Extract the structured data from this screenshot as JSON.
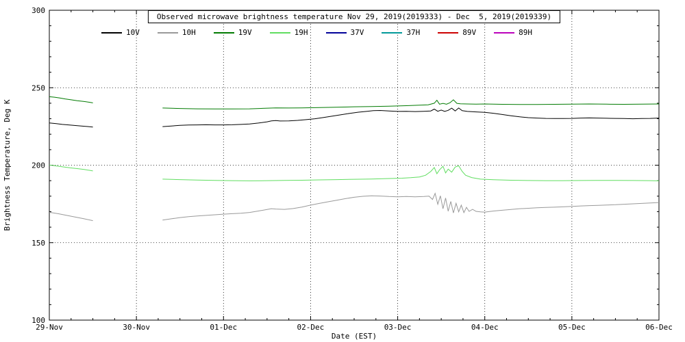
{
  "chart_data": {
    "type": "line",
    "title": "Observed microwave brightness temperature Nov 29, 2019(2019333) - Dec  5, 2019(2019339)",
    "xlabel": "Date (EST)",
    "ylabel": "Brightness Temperature, Deg K",
    "xlim": [
      0,
      7
    ],
    "ylim": [
      100,
      300
    ],
    "grid": "dotted",
    "legend_position": "top",
    "xticks": [
      {
        "x": 0,
        "label": "29-Nov"
      },
      {
        "x": 1,
        "label": "30-Nov"
      },
      {
        "x": 2,
        "label": "01-Dec"
      },
      {
        "x": 3,
        "label": "02-Dec"
      },
      {
        "x": 4,
        "label": "03-Dec"
      },
      {
        "x": 5,
        "label": "04-Dec"
      },
      {
        "x": 6,
        "label": "05-Dec"
      },
      {
        "x": 7,
        "label": "06-Dec"
      }
    ],
    "yticks": [
      100,
      150,
      200,
      250,
      300
    ],
    "series": [
      {
        "name": "10V",
        "color": "#000000",
        "segments": [
          [
            [
              0,
              227.3
            ],
            [
              0.08,
              226.8
            ],
            [
              0.15,
              226.3
            ],
            [
              0.22,
              226.0
            ],
            [
              0.3,
              225.6
            ],
            [
              0.38,
              225.2
            ],
            [
              0.45,
              224.9
            ],
            [
              0.5,
              224.6
            ]
          ],
          [
            [
              1.3,
              224.9
            ],
            [
              1.4,
              225.3
            ],
            [
              1.5,
              225.7
            ],
            [
              1.6,
              225.9
            ],
            [
              1.7,
              226.0
            ],
            [
              1.8,
              226.1
            ],
            [
              1.9,
              226.0
            ],
            [
              2.0,
              226.0
            ],
            [
              2.1,
              226.1
            ],
            [
              2.2,
              226.3
            ],
            [
              2.3,
              226.6
            ],
            [
              2.4,
              227.2
            ],
            [
              2.5,
              228.0
            ],
            [
              2.55,
              228.6
            ],
            [
              2.6,
              228.8
            ],
            [
              2.65,
              228.5
            ],
            [
              2.75,
              228.6
            ],
            [
              2.85,
              228.9
            ],
            [
              2.95,
              229.4
            ],
            [
              3.05,
              230.0
            ],
            [
              3.15,
              230.8
            ],
            [
              3.25,
              231.7
            ],
            [
              3.35,
              232.6
            ],
            [
              3.45,
              233.4
            ],
            [
              3.55,
              234.2
            ],
            [
              3.65,
              234.8
            ],
            [
              3.72,
              235.2
            ],
            [
              3.8,
              235.3
            ],
            [
              3.9,
              235.0
            ],
            [
              4.0,
              234.7
            ],
            [
              4.1,
              234.8
            ],
            [
              4.2,
              234.6
            ],
            [
              4.3,
              234.8
            ],
            [
              4.38,
              235.0
            ],
            [
              4.42,
              236.2
            ],
            [
              4.46,
              234.8
            ],
            [
              4.5,
              235.6
            ],
            [
              4.54,
              234.7
            ],
            [
              4.58,
              235.4
            ],
            [
              4.62,
              236.8
            ],
            [
              4.66,
              235.0
            ],
            [
              4.7,
              236.9
            ],
            [
              4.74,
              235.2
            ],
            [
              4.8,
              234.7
            ],
            [
              4.9,
              234.4
            ],
            [
              5.0,
              234.1
            ],
            [
              5.1,
              233.5
            ],
            [
              5.2,
              232.7
            ],
            [
              5.3,
              231.9
            ],
            [
              5.4,
              231.2
            ],
            [
              5.5,
              230.7
            ],
            [
              5.6,
              230.4
            ],
            [
              5.7,
              230.2
            ],
            [
              5.8,
              230.1
            ],
            [
              5.9,
              230.1
            ],
            [
              6.0,
              230.2
            ],
            [
              6.1,
              230.4
            ],
            [
              6.2,
              230.5
            ],
            [
              6.3,
              230.4
            ],
            [
              6.4,
              230.3
            ],
            [
              6.5,
              230.2
            ],
            [
              6.6,
              230.1
            ],
            [
              6.7,
              230.0
            ],
            [
              6.8,
              230.1
            ],
            [
              6.9,
              230.2
            ],
            [
              7.0,
              230.4
            ]
          ]
        ]
      },
      {
        "name": "10H",
        "color": "#999999",
        "segments": [
          [
            [
              0,
              169.6
            ],
            [
              0.1,
              168.7
            ],
            [
              0.2,
              167.6
            ],
            [
              0.3,
              166.5
            ],
            [
              0.4,
              165.4
            ],
            [
              0.5,
              164.2
            ]
          ],
          [
            [
              1.3,
              164.6
            ],
            [
              1.4,
              165.4
            ],
            [
              1.5,
              166.2
            ],
            [
              1.6,
              166.8
            ],
            [
              1.7,
              167.2
            ],
            [
              1.8,
              167.6
            ],
            [
              1.9,
              168.0
            ],
            [
              2.0,
              168.4
            ],
            [
              2.1,
              168.7
            ],
            [
              2.2,
              169.0
            ],
            [
              2.3,
              169.5
            ],
            [
              2.4,
              170.4
            ],
            [
              2.5,
              171.4
            ],
            [
              2.55,
              171.9
            ],
            [
              2.6,
              171.7
            ],
            [
              2.7,
              171.5
            ],
            [
              2.8,
              172.0
            ],
            [
              2.9,
              173.0
            ],
            [
              3.0,
              174.2
            ],
            [
              3.1,
              175.3
            ],
            [
              3.2,
              176.4
            ],
            [
              3.3,
              177.4
            ],
            [
              3.4,
              178.4
            ],
            [
              3.5,
              179.3
            ],
            [
              3.6,
              179.9
            ],
            [
              3.7,
              180.2
            ],
            [
              3.8,
              180.1
            ],
            [
              3.9,
              179.8
            ],
            [
              4.0,
              179.6
            ],
            [
              4.1,
              179.8
            ],
            [
              4.2,
              179.6
            ],
            [
              4.3,
              179.8
            ],
            [
              4.36,
              180.0
            ],
            [
              4.4,
              177.9
            ],
            [
              4.43,
              181.8
            ],
            [
              4.46,
              174.8
            ],
            [
              4.49,
              180.2
            ],
            [
              4.52,
              171.9
            ],
            [
              4.55,
              178.8
            ],
            [
              4.58,
              170.3
            ],
            [
              4.61,
              176.6
            ],
            [
              4.64,
              169.2
            ],
            [
              4.67,
              175.4
            ],
            [
              4.7,
              169.9
            ],
            [
              4.73,
              174.2
            ],
            [
              4.76,
              169.4
            ],
            [
              4.79,
              172.8
            ],
            [
              4.82,
              170.2
            ],
            [
              4.86,
              171.5
            ],
            [
              4.9,
              170.2
            ],
            [
              4.95,
              169.9
            ],
            [
              5.0,
              169.7
            ],
            [
              5.1,
              170.4
            ],
            [
              5.2,
              170.9
            ],
            [
              5.3,
              171.4
            ],
            [
              5.4,
              171.9
            ],
            [
              5.5,
              172.2
            ],
            [
              5.6,
              172.5
            ],
            [
              5.7,
              172.7
            ],
            [
              5.8,
              172.9
            ],
            [
              5.9,
              173.1
            ],
            [
              6.0,
              173.4
            ],
            [
              6.1,
              173.7
            ],
            [
              6.2,
              173.9
            ],
            [
              6.3,
              174.1
            ],
            [
              6.4,
              174.3
            ],
            [
              6.5,
              174.5
            ],
            [
              6.6,
              174.8
            ],
            [
              6.8,
              175.3
            ],
            [
              7.0,
              175.9
            ]
          ]
        ]
      },
      {
        "name": "19V",
        "color": "#007a00",
        "segments": [
          [
            [
              0,
              244.2
            ],
            [
              0.06,
              243.9
            ],
            [
              0.12,
              243.4
            ],
            [
              0.18,
              242.8
            ],
            [
              0.25,
              242.2
            ],
            [
              0.32,
              241.6
            ],
            [
              0.4,
              241.1
            ],
            [
              0.46,
              240.6
            ],
            [
              0.5,
              240.2
            ]
          ],
          [
            [
              1.3,
              236.9
            ],
            [
              1.5,
              236.6
            ],
            [
              1.7,
              236.4
            ],
            [
              1.9,
              236.3
            ],
            [
              2.1,
              236.3
            ],
            [
              2.3,
              236.4
            ],
            [
              2.45,
              236.7
            ],
            [
              2.6,
              237.0
            ],
            [
              2.75,
              236.9
            ],
            [
              2.9,
              237.0
            ],
            [
              3.1,
              237.2
            ],
            [
              3.3,
              237.4
            ],
            [
              3.5,
              237.7
            ],
            [
              3.7,
              237.9
            ],
            [
              3.9,
              238.1
            ],
            [
              4.1,
              238.4
            ],
            [
              4.25,
              238.7
            ],
            [
              4.35,
              239.0
            ],
            [
              4.42,
              240.0
            ],
            [
              4.45,
              241.9
            ],
            [
              4.48,
              239.4
            ],
            [
              4.52,
              239.9
            ],
            [
              4.56,
              239.4
            ],
            [
              4.6,
              240.3
            ],
            [
              4.64,
              242.2
            ],
            [
              4.68,
              239.9
            ],
            [
              4.72,
              239.6
            ],
            [
              4.8,
              239.5
            ],
            [
              4.9,
              239.4
            ],
            [
              5.0,
              239.5
            ],
            [
              5.2,
              239.3
            ],
            [
              5.4,
              239.2
            ],
            [
              5.6,
              239.2
            ],
            [
              5.8,
              239.3
            ],
            [
              6.0,
              239.4
            ],
            [
              6.2,
              239.5
            ],
            [
              6.4,
              239.4
            ],
            [
              6.6,
              239.3
            ],
            [
              6.8,
              239.4
            ],
            [
              7.0,
              239.5
            ]
          ]
        ]
      },
      {
        "name": "19H",
        "color": "#5fdd5f",
        "segments": [
          [
            [
              0,
              200.1
            ],
            [
              0.08,
              199.5
            ],
            [
              0.16,
              198.9
            ],
            [
              0.24,
              198.3
            ],
            [
              0.32,
              197.8
            ],
            [
              0.4,
              197.2
            ],
            [
              0.46,
              196.7
            ],
            [
              0.5,
              196.3
            ]
          ],
          [
            [
              1.3,
              191.0
            ],
            [
              1.5,
              190.7
            ],
            [
              1.7,
              190.4
            ],
            [
              1.9,
              190.2
            ],
            [
              2.1,
              190.0
            ],
            [
              2.3,
              189.9
            ],
            [
              2.5,
              190.0
            ],
            [
              2.7,
              190.2
            ],
            [
              2.9,
              190.3
            ],
            [
              3.1,
              190.5
            ],
            [
              3.3,
              190.7
            ],
            [
              3.5,
              190.9
            ],
            [
              3.7,
              191.1
            ],
            [
              3.9,
              191.4
            ],
            [
              4.05,
              191.6
            ],
            [
              4.15,
              191.9
            ],
            [
              4.25,
              192.4
            ],
            [
              4.32,
              193.5
            ],
            [
              4.38,
              196.0
            ],
            [
              4.42,
              198.5
            ],
            [
              4.45,
              194.5
            ],
            [
              4.48,
              197.0
            ],
            [
              4.52,
              199.3
            ],
            [
              4.55,
              195.0
            ],
            [
              4.58,
              197.5
            ],
            [
              4.62,
              195.5
            ],
            [
              4.66,
              198.8
            ],
            [
              4.7,
              199.6
            ],
            [
              4.74,
              196.0
            ],
            [
              4.78,
              193.5
            ],
            [
              4.85,
              192.0
            ],
            [
              4.95,
              191.0
            ],
            [
              5.1,
              190.6
            ],
            [
              5.3,
              190.3
            ],
            [
              5.5,
              190.1
            ],
            [
              5.7,
              190.0
            ],
            [
              5.9,
              190.0
            ],
            [
              6.1,
              190.1
            ],
            [
              6.3,
              190.2
            ],
            [
              6.5,
              190.2
            ],
            [
              6.7,
              190.1
            ],
            [
              6.9,
              190.0
            ],
            [
              7.0,
              189.9
            ]
          ]
        ]
      },
      {
        "name": "37V",
        "color": "#000099",
        "segments": []
      },
      {
        "name": "37H",
        "color": "#009999",
        "segments": []
      },
      {
        "name": "89V",
        "color": "#cc0000",
        "segments": []
      },
      {
        "name": "89H",
        "color": "#bb00bb",
        "segments": []
      }
    ]
  }
}
